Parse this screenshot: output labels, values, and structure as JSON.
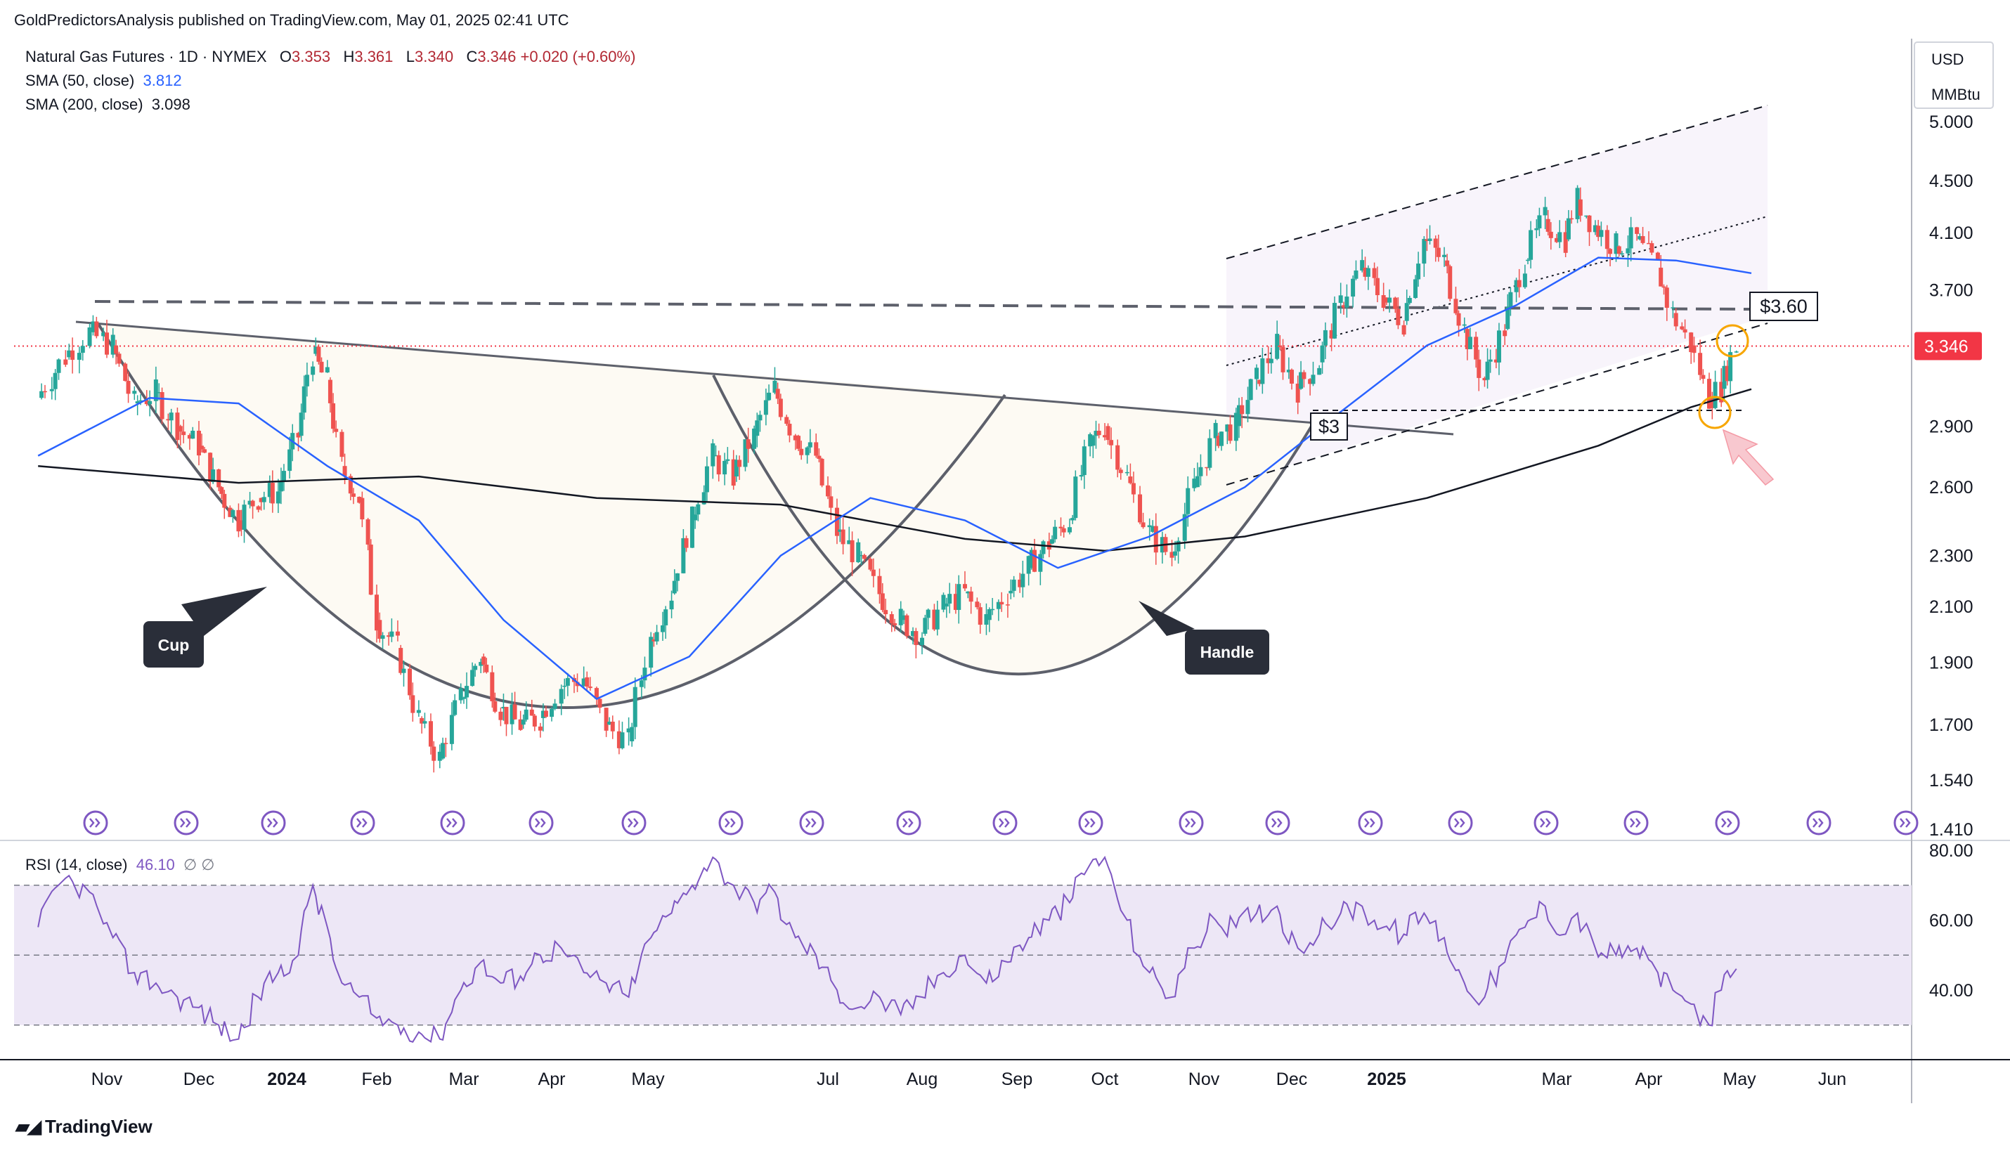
{
  "header": {
    "published": "GoldPredictorsAnalysis published on TradingView.com, May 01, 2025 02:41 UTC"
  },
  "legend": {
    "symbol": "Natural Gas Futures · 1D · NYMEX",
    "open_label": "O",
    "open": "3.353",
    "high_label": "H",
    "high": "3.361",
    "low_label": "L",
    "low": "3.340",
    "close_label": "C",
    "close": "3.346",
    "change": "+0.020 (+0.60%)",
    "sma50_label": "SMA (50, close)",
    "sma50_value": "3.812",
    "sma200_label": "SMA (200, close)",
    "sma200_value": "3.098",
    "rsi_label": "RSI (14, close)",
    "rsi_value": "46.10",
    "rsi_extra": "∅ ∅"
  },
  "axis": {
    "currency": "USD",
    "unit": "MMBtu",
    "last_price_tag": "3.346"
  },
  "annotations": {
    "cup": "Cup",
    "handle": "Handle",
    "level_360": "$3.60",
    "level_3": "$3"
  },
  "footer": {
    "brand": "TradingView"
  },
  "colors": {
    "up": "#26a69a",
    "down": "#ef5350",
    "sma50": "#2962ff",
    "sma200": "#131722",
    "rsi": "#7e57c2",
    "rsi_band": "#ede7f6",
    "price_tag": "#f23645",
    "event_icon": "#7e57c2",
    "label_box": "#2a2e39"
  },
  "chart_data": [
    {
      "type": "candlestick",
      "title": "Natural Gas Futures · 1D · NYMEX",
      "y_ticks": [
        5.0,
        4.5,
        4.1,
        3.7,
        3.346,
        2.9,
        2.6,
        2.3,
        2.1,
        1.9,
        1.7,
        1.54,
        1.41
      ],
      "y_tick_labels": [
        "5.000",
        "4.500",
        "4.100",
        "3.700",
        "3.346",
        "2.900",
        "2.600",
        "2.300",
        "2.100",
        "1.900",
        "1.700",
        "1.540",
        "1.410"
      ],
      "ylim": [
        1.41,
        5.15
      ],
      "y_scale": "log",
      "x_labels": [
        "Nov",
        "Dec",
        "2024",
        "Feb",
        "Mar",
        "Apr",
        "May",
        "Jul",
        "Aug",
        "Sep",
        "Oct",
        "Nov",
        "Dec",
        "2025",
        "Mar",
        "Apr",
        "May",
        "Jun"
      ],
      "x_label_dates": [
        "2023-11-01",
        "2023-12-01",
        "2024-01-01",
        "2024-02-01",
        "2024-03-01",
        "2024-04-01",
        "2024-05-01",
        "2024-07-01",
        "2024-08-01",
        "2024-09-01",
        "2024-10-01",
        "2024-11-01",
        "2024-12-01",
        "2025-01-01",
        "2025-03-01",
        "2025-04-01",
        "2025-05-01",
        "2025-06-01"
      ],
      "close_path": [
        [
          "2023-10-12",
          3.05
        ],
        [
          "2023-10-20",
          3.28
        ],
        [
          "2023-10-27",
          3.43
        ],
        [
          "2023-11-03",
          3.35
        ],
        [
          "2023-11-10",
          3.02
        ],
        [
          "2023-11-17",
          3.08
        ],
        [
          "2023-11-24",
          2.9
        ],
        [
          "2023-12-01",
          2.8
        ],
        [
          "2023-12-08",
          2.6
        ],
        [
          "2023-12-15",
          2.45
        ],
        [
          "2023-12-22",
          2.55
        ],
        [
          "2023-12-29",
          2.58
        ],
        [
          "2024-01-05",
          2.85
        ],
        [
          "2024-01-10",
          3.3
        ],
        [
          "2024-01-15",
          3.15
        ],
        [
          "2024-01-20",
          2.7
        ],
        [
          "2024-01-26",
          2.55
        ],
        [
          "2024-02-01",
          2.05
        ],
        [
          "2024-02-08",
          1.95
        ],
        [
          "2024-02-15",
          1.72
        ],
        [
          "2024-02-22",
          1.6
        ],
        [
          "2024-02-29",
          1.78
        ],
        [
          "2024-03-07",
          1.92
        ],
        [
          "2024-03-14",
          1.75
        ],
        [
          "2024-03-21",
          1.7
        ],
        [
          "2024-03-28",
          1.72
        ],
        [
          "2024-04-04",
          1.82
        ],
        [
          "2024-04-11",
          1.85
        ],
        [
          "2024-04-18",
          1.7
        ],
        [
          "2024-04-25",
          1.65
        ],
        [
          "2024-05-02",
          1.98
        ],
        [
          "2024-05-09",
          2.15
        ],
        [
          "2024-05-16",
          2.45
        ],
        [
          "2024-05-23",
          2.75
        ],
        [
          "2024-05-30",
          2.65
        ],
        [
          "2024-06-06",
          2.85
        ],
        [
          "2024-06-13",
          3.1
        ],
        [
          "2024-06-20",
          2.85
        ],
        [
          "2024-06-27",
          2.75
        ],
        [
          "2024-07-04",
          2.4
        ],
        [
          "2024-07-11",
          2.3
        ],
        [
          "2024-07-18",
          2.15
        ],
        [
          "2024-07-25",
          2.05
        ],
        [
          "2024-08-01",
          2.0
        ],
        [
          "2024-08-08",
          2.1
        ],
        [
          "2024-08-15",
          2.15
        ],
        [
          "2024-08-22",
          2.05
        ],
        [
          "2024-08-29",
          2.15
        ],
        [
          "2024-09-05",
          2.25
        ],
        [
          "2024-09-12",
          2.35
        ],
        [
          "2024-09-19",
          2.45
        ],
        [
          "2024-09-26",
          2.8
        ],
        [
          "2024-10-01",
          2.9
        ],
        [
          "2024-10-08",
          2.65
        ],
        [
          "2024-10-15",
          2.4
        ],
        [
          "2024-10-22",
          2.3
        ],
        [
          "2024-10-29",
          2.6
        ],
        [
          "2024-11-05",
          2.85
        ],
        [
          "2024-11-12",
          2.9
        ],
        [
          "2024-11-19",
          3.15
        ],
        [
          "2024-11-26",
          3.35
        ],
        [
          "2024-12-03",
          3.1
        ],
        [
          "2024-12-10",
          3.25
        ],
        [
          "2024-12-17",
          3.6
        ],
        [
          "2024-12-24",
          3.85
        ],
        [
          "2024-12-31",
          3.65
        ],
        [
          "2025-01-07",
          3.5
        ],
        [
          "2025-01-14",
          4.05
        ],
        [
          "2025-01-21",
          3.9
        ],
        [
          "2025-01-28",
          3.45
        ],
        [
          "2025-02-04",
          3.15
        ],
        [
          "2025-02-11",
          3.45
        ],
        [
          "2025-02-18",
          3.9
        ],
        [
          "2025-02-25",
          4.2
        ],
        [
          "2025-03-04",
          4.05
        ],
        [
          "2025-03-08",
          4.35
        ],
        [
          "2025-03-14",
          4.15
        ],
        [
          "2025-03-21",
          4.0
        ],
        [
          "2025-03-28",
          4.05
        ],
        [
          "2025-04-04",
          3.85
        ],
        [
          "2025-04-09",
          3.55
        ],
        [
          "2025-04-15",
          3.35
        ],
        [
          "2025-04-21",
          3.05
        ],
        [
          "2025-04-25",
          3.1
        ],
        [
          "2025-04-30",
          3.346
        ]
      ],
      "sma50_path": [
        [
          "2023-10-12",
          2.75
        ],
        [
          "2023-11-15",
          3.05
        ],
        [
          "2023-12-15",
          3.02
        ],
        [
          "2024-01-15",
          2.7
        ],
        [
          "2024-02-15",
          2.45
        ],
        [
          "2024-03-15",
          2.05
        ],
        [
          "2024-04-15",
          1.78
        ],
        [
          "2024-05-15",
          1.92
        ],
        [
          "2024-06-15",
          2.3
        ],
        [
          "2024-07-15",
          2.55
        ],
        [
          "2024-08-15",
          2.45
        ],
        [
          "2024-09-15",
          2.25
        ],
        [
          "2024-10-15",
          2.38
        ],
        [
          "2024-11-15",
          2.6
        ],
        [
          "2024-12-15",
          2.95
        ],
        [
          "2025-01-15",
          3.35
        ],
        [
          "2025-02-15",
          3.6
        ],
        [
          "2025-03-15",
          3.92
        ],
        [
          "2025-04-10",
          3.9
        ],
        [
          "2025-05-05",
          3.812
        ]
      ],
      "sma200_path": [
        [
          "2023-10-12",
          2.7
        ],
        [
          "2023-12-15",
          2.62
        ],
        [
          "2024-02-15",
          2.65
        ],
        [
          "2024-04-15",
          2.55
        ],
        [
          "2024-06-15",
          2.52
        ],
        [
          "2024-08-15",
          2.37
        ],
        [
          "2024-10-01",
          2.32
        ],
        [
          "2024-11-15",
          2.38
        ],
        [
          "2025-01-15",
          2.55
        ],
        [
          "2025-03-15",
          2.8
        ],
        [
          "2025-04-15",
          3.0
        ],
        [
          "2025-05-05",
          3.098
        ]
      ],
      "horizontal_levels": [
        3.6,
        3.0
      ]
    },
    {
      "type": "line",
      "title": "RSI (14, close)",
      "y_ticks": [
        80,
        60,
        40
      ],
      "y_tick_labels": [
        "80.00",
        "60.00",
        "40.00"
      ],
      "ylim": [
        20,
        82
      ],
      "band": [
        30,
        70
      ],
      "midline": 50,
      "rsi_path": [
        [
          "2023-10-12",
          58
        ],
        [
          "2023-10-20",
          72
        ],
        [
          "2023-10-27",
          68
        ],
        [
          "2023-11-03",
          55
        ],
        [
          "2023-11-10",
          45
        ],
        [
          "2023-11-17",
          42
        ],
        [
          "2023-11-24",
          38
        ],
        [
          "2023-12-01",
          35
        ],
        [
          "2023-12-08",
          30
        ],
        [
          "2023-12-15",
          26
        ],
        [
          "2023-12-22",
          38
        ],
        [
          "2023-12-29",
          45
        ],
        [
          "2024-01-05",
          50
        ],
        [
          "2024-01-10",
          70
        ],
        [
          "2024-01-15",
          58
        ],
        [
          "2024-01-20",
          42
        ],
        [
          "2024-01-26",
          38
        ],
        [
          "2024-02-01",
          32
        ],
        [
          "2024-02-08",
          30
        ],
        [
          "2024-02-15",
          28
        ],
        [
          "2024-02-22",
          26
        ],
        [
          "2024-02-29",
          40
        ],
        [
          "2024-03-07",
          48
        ],
        [
          "2024-03-14",
          42
        ],
        [
          "2024-03-21",
          44
        ],
        [
          "2024-03-28",
          50
        ],
        [
          "2024-04-04",
          52
        ],
        [
          "2024-04-11",
          45
        ],
        [
          "2024-04-18",
          42
        ],
        [
          "2024-04-25",
          38
        ],
        [
          "2024-05-02",
          55
        ],
        [
          "2024-05-09",
          62
        ],
        [
          "2024-05-16",
          70
        ],
        [
          "2024-05-23",
          78
        ],
        [
          "2024-05-30",
          70
        ],
        [
          "2024-06-06",
          65
        ],
        [
          "2024-06-13",
          68
        ],
        [
          "2024-06-20",
          55
        ],
        [
          "2024-06-27",
          50
        ],
        [
          "2024-07-04",
          40
        ],
        [
          "2024-07-11",
          35
        ],
        [
          "2024-07-18",
          38
        ],
        [
          "2024-07-25",
          33
        ],
        [
          "2024-08-01",
          38
        ],
        [
          "2024-08-08",
          45
        ],
        [
          "2024-08-15",
          50
        ],
        [
          "2024-08-22",
          42
        ],
        [
          "2024-08-29",
          48
        ],
        [
          "2024-09-05",
          55
        ],
        [
          "2024-09-12",
          60
        ],
        [
          "2024-09-19",
          65
        ],
        [
          "2024-09-26",
          76
        ],
        [
          "2024-10-01",
          78
        ],
        [
          "2024-10-08",
          60
        ],
        [
          "2024-10-15",
          45
        ],
        [
          "2024-10-22",
          38
        ],
        [
          "2024-10-29",
          52
        ],
        [
          "2024-11-05",
          60
        ],
        [
          "2024-11-12",
          58
        ],
        [
          "2024-11-19",
          62
        ],
        [
          "2024-11-26",
          64
        ],
        [
          "2024-12-03",
          52
        ],
        [
          "2024-12-10",
          56
        ],
        [
          "2024-12-17",
          62
        ],
        [
          "2024-12-24",
          64
        ],
        [
          "2024-12-31",
          58
        ],
        [
          "2025-01-07",
          56
        ],
        [
          "2025-01-14",
          62
        ],
        [
          "2025-01-21",
          55
        ],
        [
          "2025-01-28",
          42
        ],
        [
          "2025-02-04",
          38
        ],
        [
          "2025-02-11",
          48
        ],
        [
          "2025-02-18",
          58
        ],
        [
          "2025-02-25",
          64
        ],
        [
          "2025-03-04",
          56
        ],
        [
          "2025-03-08",
          62
        ],
        [
          "2025-03-14",
          52
        ],
        [
          "2025-03-21",
          50
        ],
        [
          "2025-03-28",
          52
        ],
        [
          "2025-04-04",
          45
        ],
        [
          "2025-04-09",
          40
        ],
        [
          "2025-04-15",
          36
        ],
        [
          "2025-04-21",
          30
        ],
        [
          "2025-04-25",
          40
        ],
        [
          "2025-04-30",
          46.1
        ]
      ]
    }
  ]
}
